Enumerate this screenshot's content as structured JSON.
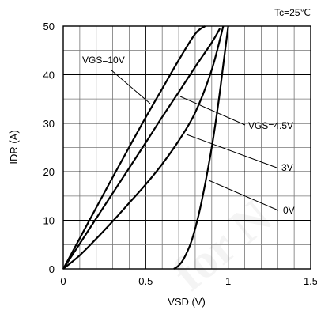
{
  "chart_data": {
    "type": "line",
    "title": "Tc=25℃",
    "xlabel": "VSD (V)",
    "ylabel": "IDR (A)",
    "xlim": [
      0,
      1.5
    ],
    "ylim": [
      0,
      50
    ],
    "x_ticks": [
      "0",
      "0.5",
      "1",
      "1.5"
    ],
    "y_ticks": [
      "0",
      "10",
      "20",
      "30",
      "40",
      "50"
    ],
    "grid": true,
    "watermark": "for N",
    "series": [
      {
        "name": "VGS=10V",
        "x": [
          0,
          0.1,
          0.2,
          0.3,
          0.4,
          0.5,
          0.6,
          0.7,
          0.8,
          0.86
        ],
        "y": [
          0,
          6.3,
          12.6,
          18.9,
          25.1,
          31.2,
          37.1,
          43.0,
          48.4,
          50
        ]
      },
      {
        "name": "VGS=4.5V",
        "x": [
          0,
          0.1,
          0.2,
          0.3,
          0.4,
          0.5,
          0.6,
          0.7,
          0.8,
          0.9,
          0.95
        ],
        "y": [
          0,
          5.2,
          10.4,
          15.6,
          20.8,
          26.0,
          31.3,
          36.4,
          41.6,
          46.6,
          49.5
        ]
      },
      {
        "name": "3V",
        "x": [
          0,
          0.1,
          0.2,
          0.3,
          0.4,
          0.5,
          0.6,
          0.7,
          0.8,
          0.9,
          0.97
        ],
        "y": [
          0,
          2.8,
          6.2,
          9.8,
          13.6,
          17.4,
          21.6,
          26.4,
          32.2,
          41.0,
          50
        ]
      },
      {
        "name": "0V",
        "x": [
          0.67,
          0.69,
          0.72,
          0.75,
          0.78,
          0.82,
          0.86,
          0.9,
          0.94,
          0.97,
          1.0
        ],
        "y": [
          0,
          0.4,
          1.5,
          3.4,
          6.0,
          11.0,
          17.5,
          25.0,
          34.0,
          42.0,
          50
        ]
      }
    ],
    "annotations": [
      {
        "text": "VGS=10V",
        "series": "VGS=10V"
      },
      {
        "text": "VGS=4.5V",
        "series": "VGS=4.5V"
      },
      {
        "text": "3V",
        "series": "3V"
      },
      {
        "text": "0V",
        "series": "0V"
      }
    ]
  }
}
